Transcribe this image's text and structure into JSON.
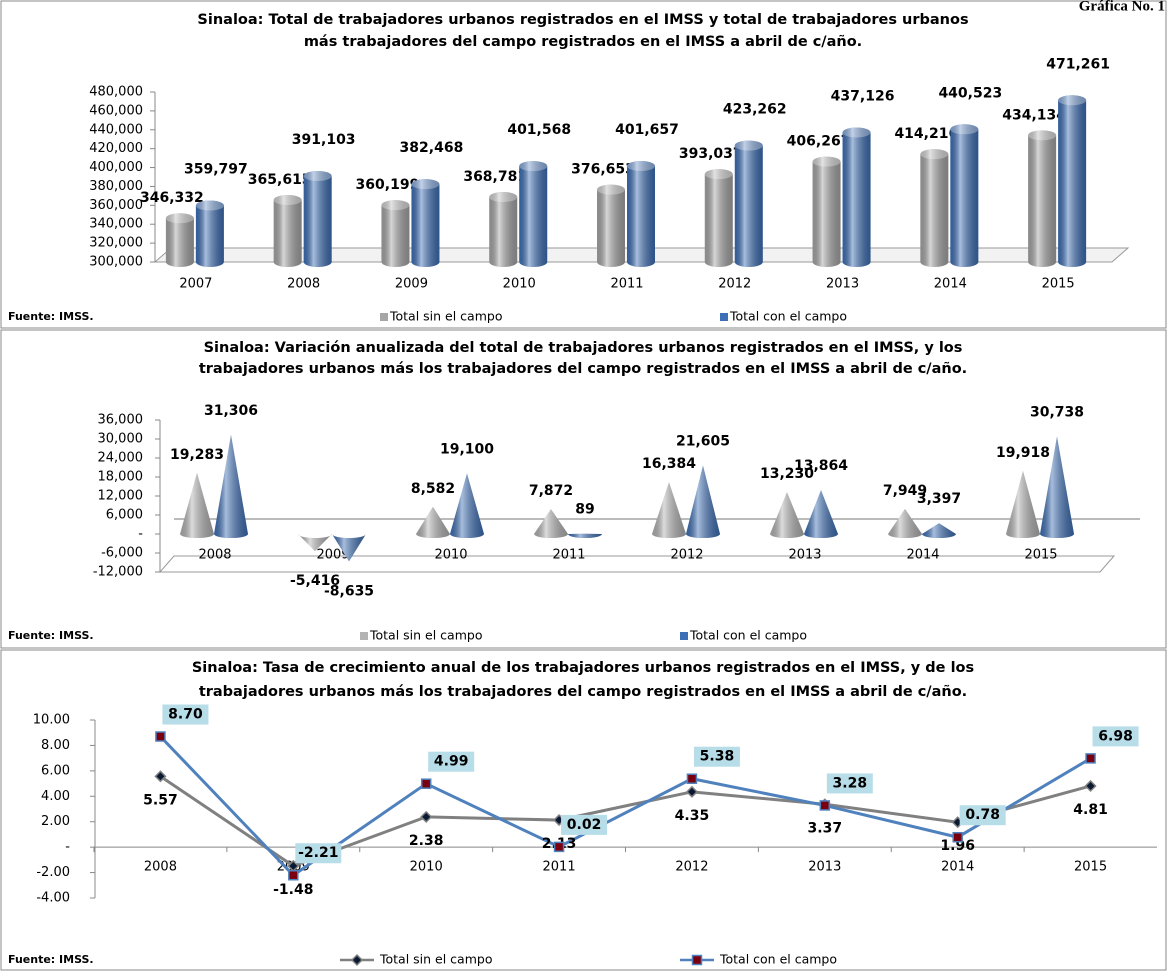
{
  "header": "Gráfica No. 1",
  "chart_data": [
    {
      "type": "bar",
      "title": [
        "Sinaloa: Total de trabajadores urbanos registrados en el IMSS y total de trabajadores urbanos",
        "más trabajadores del campo registrados en el IMSS a abril de c/año."
      ],
      "categories": [
        "2007",
        "2008",
        "2009",
        "2010",
        "2011",
        "2012",
        "2013",
        "2014",
        "2015"
      ],
      "series": [
        {
          "name": "Total sin el campo",
          "color": "#a6a6a6",
          "label_color": "#000000",
          "values": [
            346332,
            365615,
            360199,
            368781,
            376653,
            393037,
            406267,
            414216,
            434134
          ],
          "value_labels": [
            "346,332",
            "365,615",
            "360,199",
            "368,781",
            "376,653",
            "393,037",
            "406,267",
            "414,216",
            "434,134"
          ]
        },
        {
          "name": "Total con el campo",
          "color": "#3d6fb6",
          "label_color": "#2f5b9a",
          "values": [
            359797,
            391103,
            382468,
            401568,
            401657,
            423262,
            437126,
            440523,
            471261
          ],
          "value_labels": [
            "359,797",
            "391,103",
            "382,468",
            "401,568",
            "401,657",
            "423,262",
            "437,126",
            "440,523",
            "471,261"
          ]
        }
      ],
      "ylim": [
        300000,
        480000
      ],
      "yticks": [
        {
          "value": 300000,
          "label": "300,000"
        },
        {
          "value": 320000,
          "label": "320,000"
        },
        {
          "value": 340000,
          "label": "340,000"
        },
        {
          "value": 360000,
          "label": "360,000"
        },
        {
          "value": 380000,
          "label": "380,000"
        },
        {
          "value": 400000,
          "label": "400,000"
        },
        {
          "value": 420000,
          "label": "420,000"
        },
        {
          "value": 440000,
          "label": "440,000"
        },
        {
          "value": 460000,
          "label": "460,000"
        },
        {
          "value": 480000,
          "label": "480,000"
        }
      ],
      "legend": "bottom",
      "source": "Fuente: IMSS."
    },
    {
      "type": "cone",
      "title": [
        "Sinaloa: Variación anualizada del total de trabajadores urbanos registrados en el IMSS, y los",
        "trabajadores urbanos más los trabajadores del campo registrados en el IMSS a abril de c/año."
      ],
      "categories": [
        "2008",
        "2009",
        "2010",
        "2011",
        "2012",
        "2013",
        "2014",
        "2015"
      ],
      "series": [
        {
          "name": "Total sin el campo",
          "color": "#b3b3b3",
          "label_color": "#000000",
          "values": [
            19283,
            -5416,
            8582,
            7872,
            16384,
            13230,
            7949,
            19918
          ],
          "value_labels": [
            "19,283",
            "-5,416",
            "8,582",
            "7,872",
            "16,384",
            "13,230",
            "7,949",
            "19,918"
          ]
        },
        {
          "name": "Total con el campo",
          "color": "#3d6fb6",
          "label_color": "#2f5b9a",
          "values": [
            31306,
            -8635,
            19100,
            89,
            21605,
            13864,
            3397,
            30738
          ],
          "value_labels": [
            "31,306",
            "-8,635",
            "19,100",
            "89",
            "21,605",
            "13,864",
            "3,397",
            "30,738"
          ]
        }
      ],
      "ylim": [
        -12000,
        36000
      ],
      "yticks": [
        {
          "value": -12000,
          "label": "-12,000"
        },
        {
          "value": -6000,
          "label": "-6,000"
        },
        {
          "value": 0,
          "label": "-"
        },
        {
          "value": 6000,
          "label": "6,000"
        },
        {
          "value": 12000,
          "label": "12,000"
        },
        {
          "value": 18000,
          "label": "18,000"
        },
        {
          "value": 24000,
          "label": "24,000"
        },
        {
          "value": 30000,
          "label": "30,000"
        },
        {
          "value": 36000,
          "label": "36,000"
        }
      ],
      "legend": "bottom",
      "source": "Fuente: IMSS."
    },
    {
      "type": "line",
      "title": [
        "Sinaloa: Tasa de crecimiento anual de los trabajadores urbanos registrados en el IMSS, y de los",
        "trabajadores urbanos más los trabajadores del campo registrados en el IMSS a abril de c/año."
      ],
      "categories": [
        "2008",
        "2009",
        "2010",
        "2011",
        "2012",
        "2013",
        "2014",
        "2015"
      ],
      "series": [
        {
          "name": "Total sin el campo",
          "color": "#808080",
          "marker": "diamond",
          "marker_color": "#0a1a33",
          "label_color": "#000000",
          "values": [
            5.57,
            -1.48,
            2.38,
            2.13,
            4.35,
            3.37,
            1.96,
            4.81
          ],
          "value_labels": [
            "5.57",
            "-1.48",
            "2.38",
            "2.13",
            "4.35",
            "3.37",
            "1.96",
            "4.81"
          ]
        },
        {
          "name": "Total con el campo",
          "color": "#4f81bd",
          "marker": "square",
          "marker_color": "#7a0010",
          "label_color": "#1f3f66",
          "label_box": "#b7dde8",
          "values": [
            8.7,
            -2.21,
            4.99,
            0.02,
            5.38,
            3.28,
            0.78,
            6.98
          ],
          "value_labels": [
            "8.70",
            "-2.21",
            "4.99",
            "0.02",
            "5.38",
            "3.28",
            "0.78",
            "6.98"
          ]
        }
      ],
      "ylim": [
        -4,
        10
      ],
      "yticks": [
        {
          "value": -4,
          "label": "-4.00"
        },
        {
          "value": -2,
          "label": "-2.00"
        },
        {
          "value": 0,
          "label": "-"
        },
        {
          "value": 2,
          "label": "2.00"
        },
        {
          "value": 4,
          "label": "4.00"
        },
        {
          "value": 6,
          "label": "6.00"
        },
        {
          "value": 8,
          "label": "8.00"
        },
        {
          "value": 10,
          "label": "10.00"
        }
      ],
      "legend": "bottom",
      "source": "Fuente: IMSS."
    }
  ]
}
